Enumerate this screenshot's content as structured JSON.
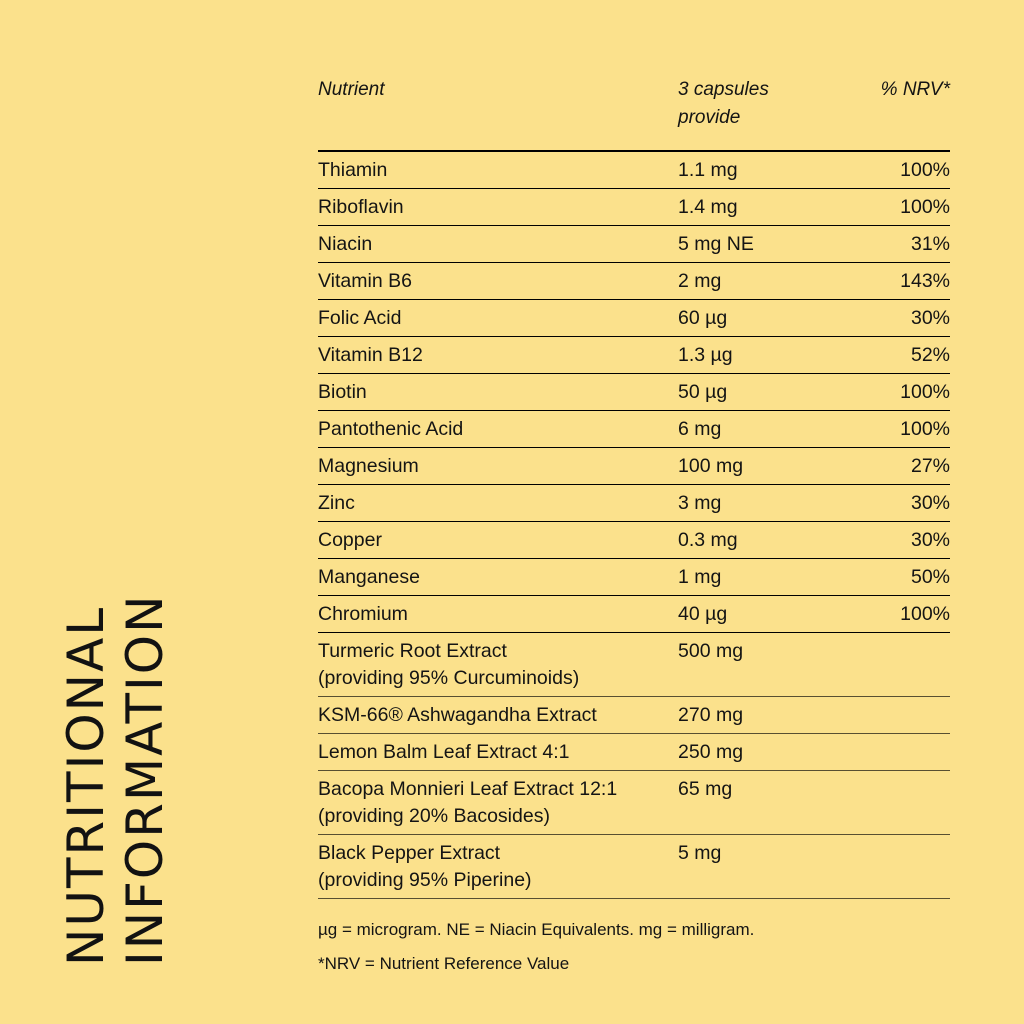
{
  "page": {
    "background_color": "#FBE18C",
    "text_color": "#141414",
    "rule_color": "#000000"
  },
  "vertical_title": {
    "line1": "NUTRITIONAL",
    "line2": "INFORMATION"
  },
  "table": {
    "headers": {
      "nutrient": "Nutrient",
      "amount": "3 capsules provide",
      "nrv": "% NRV*"
    },
    "rows": [
      {
        "nutrient": "Thiamin",
        "amount": "1.1 mg",
        "nrv": "100%"
      },
      {
        "nutrient": "Riboflavin",
        "amount": "1.4 mg",
        "nrv": "100%"
      },
      {
        "nutrient": "Niacin",
        "amount": "5 mg NE",
        "nrv": "31%"
      },
      {
        "nutrient": "Vitamin B6",
        "amount": "2 mg",
        "nrv": "143%"
      },
      {
        "nutrient": "Folic Acid",
        "amount": "60 µg",
        "nrv": "30%"
      },
      {
        "nutrient": "Vitamin B12",
        "amount": "1.3 µg",
        "nrv": "52%"
      },
      {
        "nutrient": "Biotin",
        "amount": "50 µg",
        "nrv": "100%"
      },
      {
        "nutrient": "Pantothenic Acid",
        "amount": "6 mg",
        "nrv": "100%"
      },
      {
        "nutrient": "Magnesium",
        "amount": "100 mg",
        "nrv": "27%"
      },
      {
        "nutrient": "Zinc",
        "amount": "3 mg",
        "nrv": "30%"
      },
      {
        "nutrient": "Copper",
        "amount": "0.3 mg",
        "nrv": "30%"
      },
      {
        "nutrient": "Manganese",
        "amount": "1 mg",
        "nrv": "50%"
      },
      {
        "nutrient": "Chromium",
        "amount": "40 µg",
        "nrv": "100%"
      },
      {
        "nutrient": "Turmeric Root Extract",
        "nutrient_sub": "(providing 95% Curcuminoids)",
        "amount": "500 mg",
        "nrv": ""
      },
      {
        "nutrient": "KSM-66® Ashwagandha Extract",
        "amount": "270 mg",
        "nrv": ""
      },
      {
        "nutrient": "Lemon Balm Leaf Extract 4:1",
        "amount": "250 mg",
        "nrv": ""
      },
      {
        "nutrient": "Bacopa Monnieri Leaf Extract 12:1",
        "nutrient_sub": "(providing 20% Bacosides)",
        "amount": "65 mg",
        "nrv": ""
      },
      {
        "nutrient": "Black Pepper Extract",
        "nutrient_sub": "(providing 95% Piperine)",
        "amount": "5 mg",
        "nrv": ""
      }
    ]
  },
  "footnotes": [
    "µg = microgram. NE = Niacin Equivalents. mg = milligram.",
    "*NRV = Nutrient Reference Value"
  ]
}
